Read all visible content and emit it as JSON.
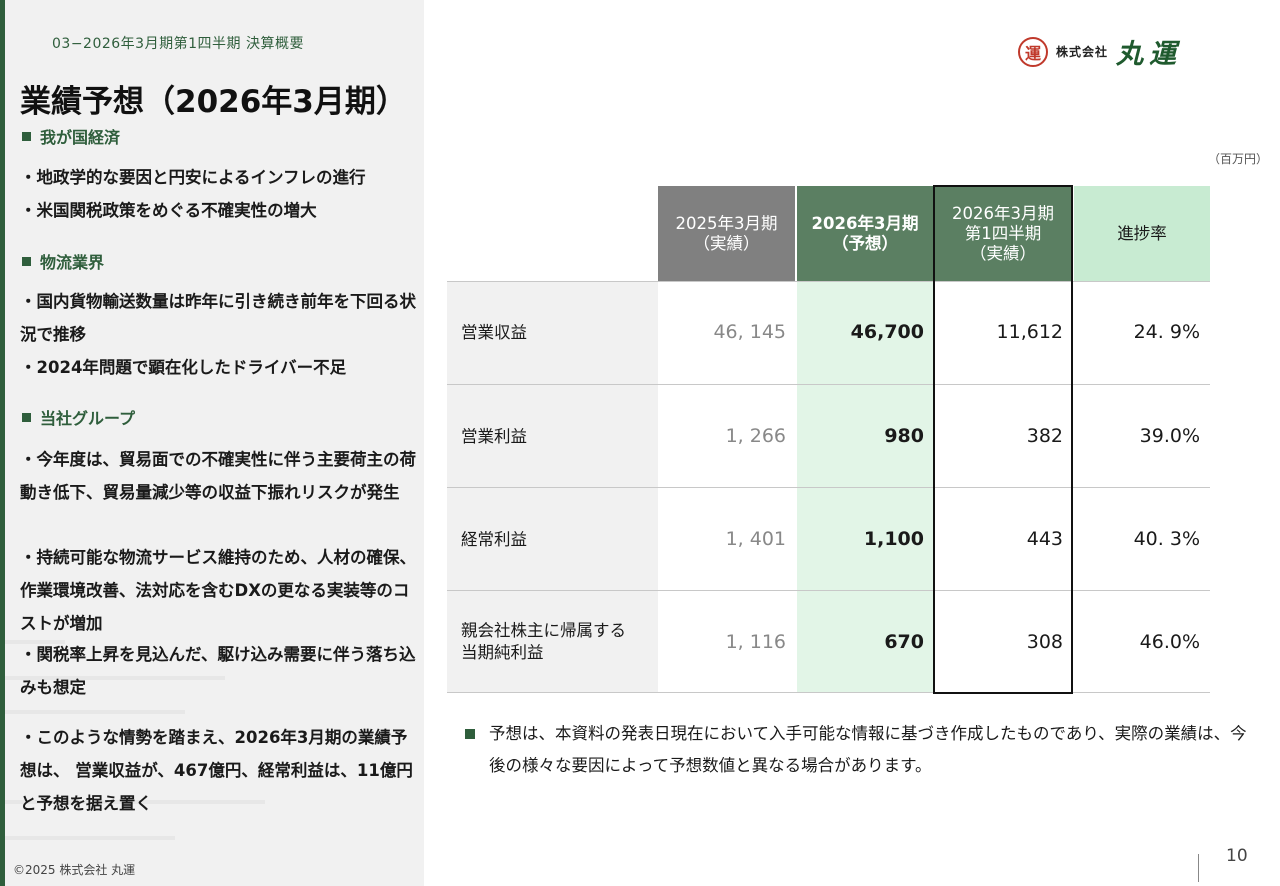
{
  "header": {
    "section": "03−2026年3月期第1四半期  決算概要",
    "title": "業績予想（2026年3月期）"
  },
  "logo": {
    "seal": "運",
    "sub": "株式会社",
    "main": "丸運"
  },
  "left": {
    "sections": [
      {
        "heading": "我が国経済",
        "bullets": [
          "・地政学的な要因と円安によるインフレの進行",
          "・米国関税政策をめぐる不確実性の増大"
        ]
      },
      {
        "heading": "物流業界",
        "bullets": [
          "・国内貨物輸送数量は昨年に引き続き前年を下回る状況で推移",
          "・2024年問題で顕在化したドライバー不足"
        ]
      },
      {
        "heading": "当社グループ",
        "bullets": [
          "・今年度は、貿易面での不確実性に伴う主要荷主の荷動き低下、貿易量減少等の収益下振れリスクが発生",
          "・持続可能な物流サービス維持のため、人材の確保、作業環境改善、法対応を含むDXの更なる実装等のコストが増加",
          "・関税率上昇を見込んだ、駆け込み需要に伴う落ち込みも想定"
        ]
      }
    ],
    "conclusion": "・このような情勢を踏まえ、2026年3月期の業績予想は、 営業収益が、467億円、経常利益は、11億円と予想を据え置く"
  },
  "table": {
    "unit": "（百万円）",
    "columns": [
      {
        "line1": "2025年3月期",
        "line2": "（実績）",
        "line3": ""
      },
      {
        "line1": "2026年3月期",
        "line2": "（予想）",
        "line3": ""
      },
      {
        "line1": "2026年3月期",
        "line2": "第1四半期",
        "line3": "（実績）"
      },
      {
        "line1": "進捗率",
        "line2": "",
        "line3": ""
      }
    ],
    "rows": [
      {
        "label1": "営業収益",
        "label2": "",
        "prev": "46, 145",
        "forecast": "46,700",
        "q1": "11,612",
        "progress": "24. 9%"
      },
      {
        "label1": "営業利益",
        "label2": "",
        "prev": "1, 266",
        "forecast": "980",
        "q1": "382",
        "progress": "39.0%"
      },
      {
        "label1": "経常利益",
        "label2": "",
        "prev": "1, 401",
        "forecast": "1,100",
        "q1": "443",
        "progress": "40. 3%"
      },
      {
        "label1": "親会社株主に帰属する",
        "label2": "当期純利益",
        "prev": "1, 116",
        "forecast": "670",
        "q1": "308",
        "progress": "46.0%"
      }
    ]
  },
  "note": "予想は、本資料の発表日現在において入手可能な情報に基づき作成したものであり、実際の業績は、今後の様々な要因によって予想数値と異なる場合があります。",
  "footer": {
    "copyright": "©2025  株式会社 丸運",
    "page": "10"
  },
  "colors": {
    "accent": "#2f5e3c",
    "header_gray": "#808080",
    "header_green": "#5b7f62",
    "light_green": "#c8ebd2",
    "forecast_bg": "#e2f5e7"
  }
}
